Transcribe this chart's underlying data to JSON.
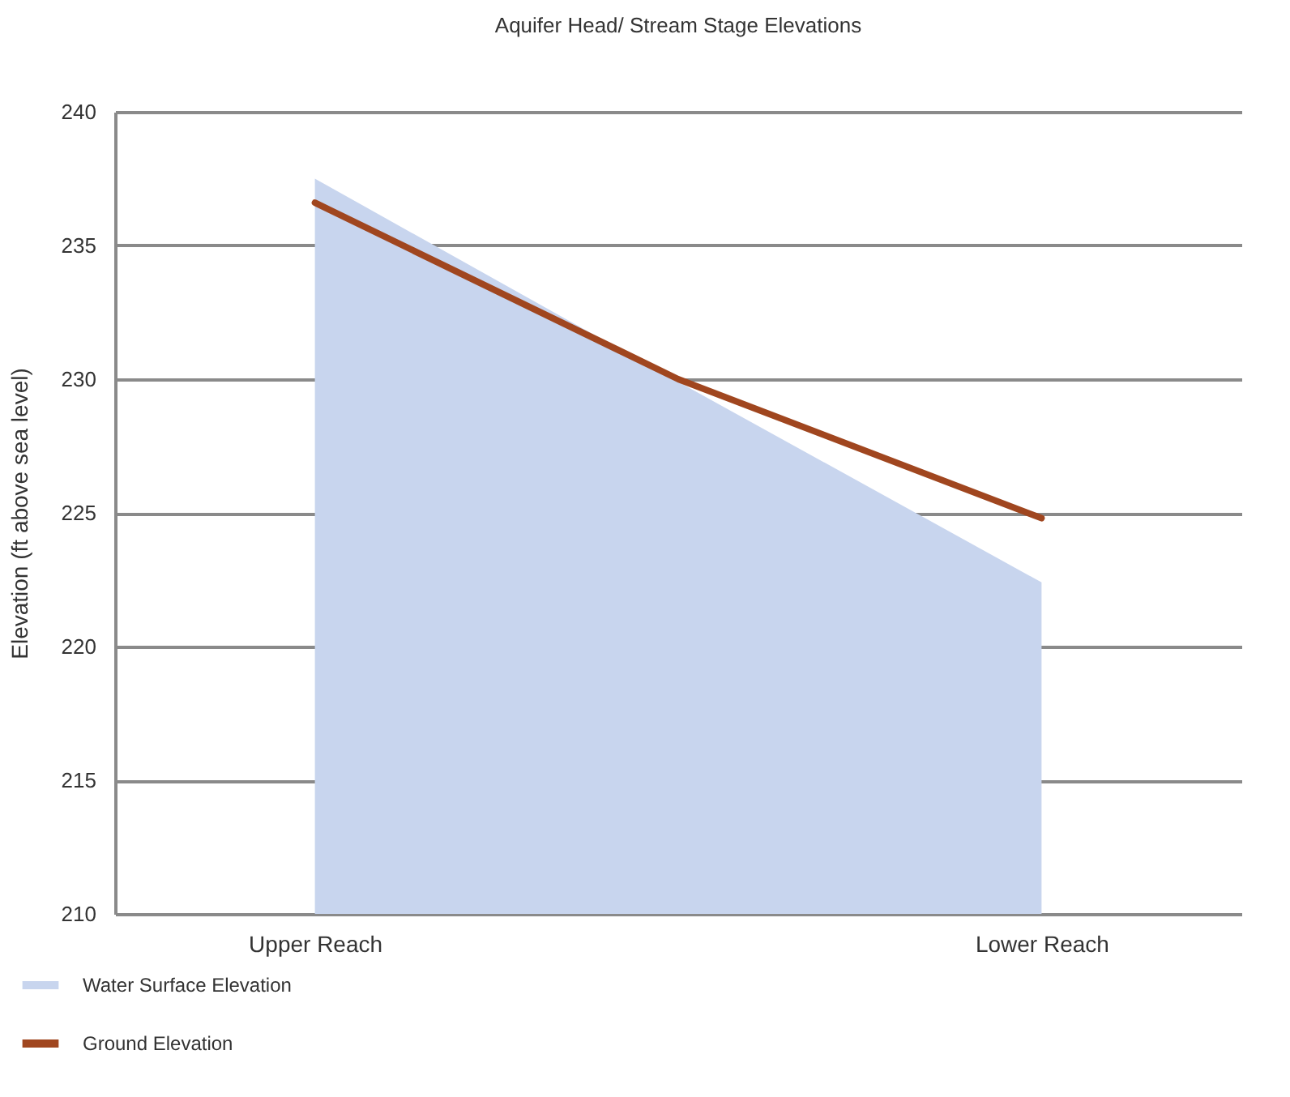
{
  "chart_data": {
    "type": "line",
    "title": "Aquifer Head/ Stream Stage Elevations",
    "ylabel": "Elevation (ft above sea level)",
    "categories": [
      "Upper Reach",
      null,
      "Lower Reach"
    ],
    "series": [
      {
        "name": "Water Surface Elevation",
        "type": "area",
        "color": "#c8d5ee",
        "values": [
          237.5,
          229.9,
          222.4
        ]
      },
      {
        "name": "Ground Elevation",
        "color": "#a0461f",
        "values": [
          236.6,
          230.0,
          224.8
        ]
      }
    ],
    "ylim": [
      210,
      240
    ],
    "yticks": [
      210,
      215,
      220,
      225,
      230,
      235,
      240
    ],
    "grid": "y",
    "legend": "bottom left"
  }
}
